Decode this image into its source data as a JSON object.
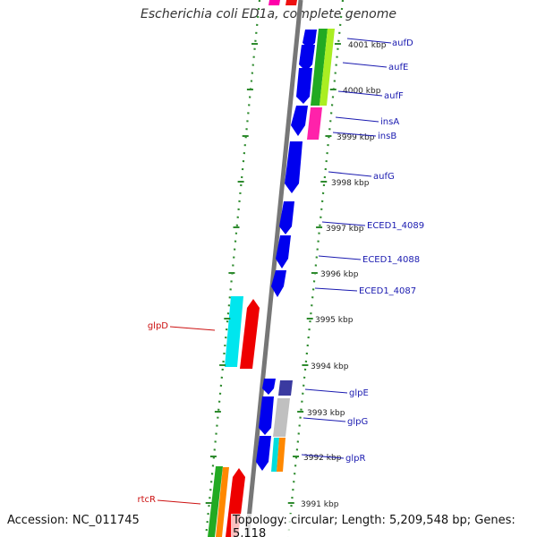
{
  "title": "Escherichia coli ED1a, complete genome",
  "footer": {
    "accession": "Accession: NC_011745",
    "topology": "Topology: circular; Length: 5,209,548 bp; Genes: 5,118"
  },
  "colors": {
    "forward_label": "#1a1ab0",
    "reverse_label": "#cc1111",
    "backbone": "#777777",
    "guide_dots": "#2e8b2e",
    "tick": "#2e8b2e"
  },
  "ticks": [
    {
      "label": "4001 kbp"
    },
    {
      "label": "4000 kbp"
    },
    {
      "label": "3999 kbp"
    },
    {
      "label": "3998 kbp"
    },
    {
      "label": "3997 kbp"
    },
    {
      "label": "3996 kbp"
    },
    {
      "label": "3995 kbp"
    },
    {
      "label": "3994 kbp"
    },
    {
      "label": "3993 kbp"
    },
    {
      "label": "3992 kbp"
    },
    {
      "label": "3991 kbp"
    }
  ],
  "gene_labels": [
    {
      "name": "aufD",
      "strand": "forward"
    },
    {
      "name": "aufE",
      "strand": "forward"
    },
    {
      "name": "aufF",
      "strand": "forward"
    },
    {
      "name": "insA",
      "strand": "forward"
    },
    {
      "name": "insB",
      "strand": "forward"
    },
    {
      "name": "aufG",
      "strand": "forward"
    },
    {
      "name": "ECED1_4089",
      "strand": "forward"
    },
    {
      "name": "ECED1_4088",
      "strand": "forward"
    },
    {
      "name": "ECED1_4087",
      "strand": "forward"
    },
    {
      "name": "glpD",
      "strand": "reverse"
    },
    {
      "name": "glpE",
      "strand": "forward"
    },
    {
      "name": "glpG",
      "strand": "forward"
    },
    {
      "name": "glpR",
      "strand": "forward"
    },
    {
      "name": "rtcR",
      "strand": "reverse"
    }
  ]
}
